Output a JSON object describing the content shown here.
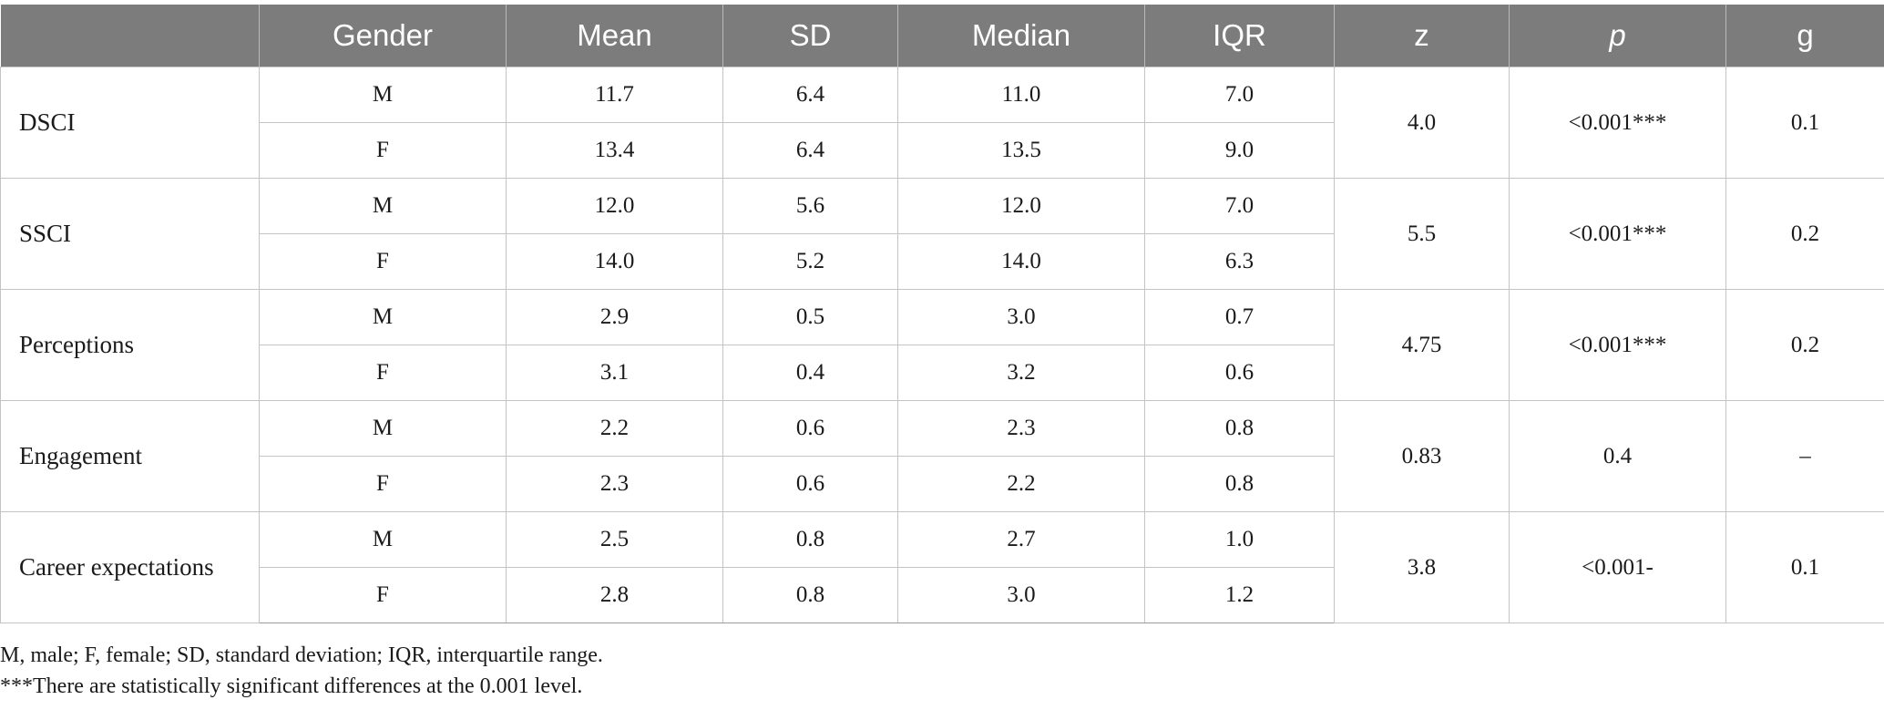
{
  "headers": {
    "variable": "",
    "gender": "Gender",
    "mean": "Mean",
    "sd": "SD",
    "median": "Median",
    "iqr": "IQR",
    "z": "z",
    "p": "p",
    "g": "g"
  },
  "groups": [
    {
      "variable": "DSCI",
      "z": "4.0",
      "p": "<0.001***",
      "g": "0.1",
      "rows": [
        {
          "gender": "M",
          "mean": "11.7",
          "sd": "6.4",
          "median": "11.0",
          "iqr": "7.0"
        },
        {
          "gender": "F",
          "mean": "13.4",
          "sd": "6.4",
          "median": "13.5",
          "iqr": "9.0"
        }
      ]
    },
    {
      "variable": "SSCI",
      "z": "5.5",
      "p": "<0.001***",
      "g": "0.2",
      "rows": [
        {
          "gender": "M",
          "mean": "12.0",
          "sd": "5.6",
          "median": "12.0",
          "iqr": "7.0"
        },
        {
          "gender": "F",
          "mean": "14.0",
          "sd": "5.2",
          "median": "14.0",
          "iqr": "6.3"
        }
      ]
    },
    {
      "variable": "Perceptions",
      "z": "4.75",
      "p": "<0.001***",
      "g": "0.2",
      "rows": [
        {
          "gender": "M",
          "mean": "2.9",
          "sd": "0.5",
          "median": "3.0",
          "iqr": "0.7"
        },
        {
          "gender": "F",
          "mean": "3.1",
          "sd": "0.4",
          "median": "3.2",
          "iqr": "0.6"
        }
      ]
    },
    {
      "variable": "Engagement",
      "z": "0.83",
      "p": "0.4",
      "g": "–",
      "rows": [
        {
          "gender": "M",
          "mean": "2.2",
          "sd": "0.6",
          "median": "2.3",
          "iqr": "0.8"
        },
        {
          "gender": "F",
          "mean": "2.3",
          "sd": "0.6",
          "median": "2.2",
          "iqr": "0.8"
        }
      ]
    },
    {
      "variable": "Career expectations",
      "z": "3.8",
      "p": "<0.001-",
      "g": "0.1",
      "rows": [
        {
          "gender": "M",
          "mean": "2.5",
          "sd": "0.8",
          "median": "2.7",
          "iqr": "1.0"
        },
        {
          "gender": "F",
          "mean": "2.8",
          "sd": "0.8",
          "median": "3.0",
          "iqr": "1.2"
        }
      ]
    }
  ],
  "footnotes": [
    "M, male; F, female; SD, standard deviation; IQR, interquartile range.",
    "***There are statistically significant differences at the 0.001 level."
  ]
}
